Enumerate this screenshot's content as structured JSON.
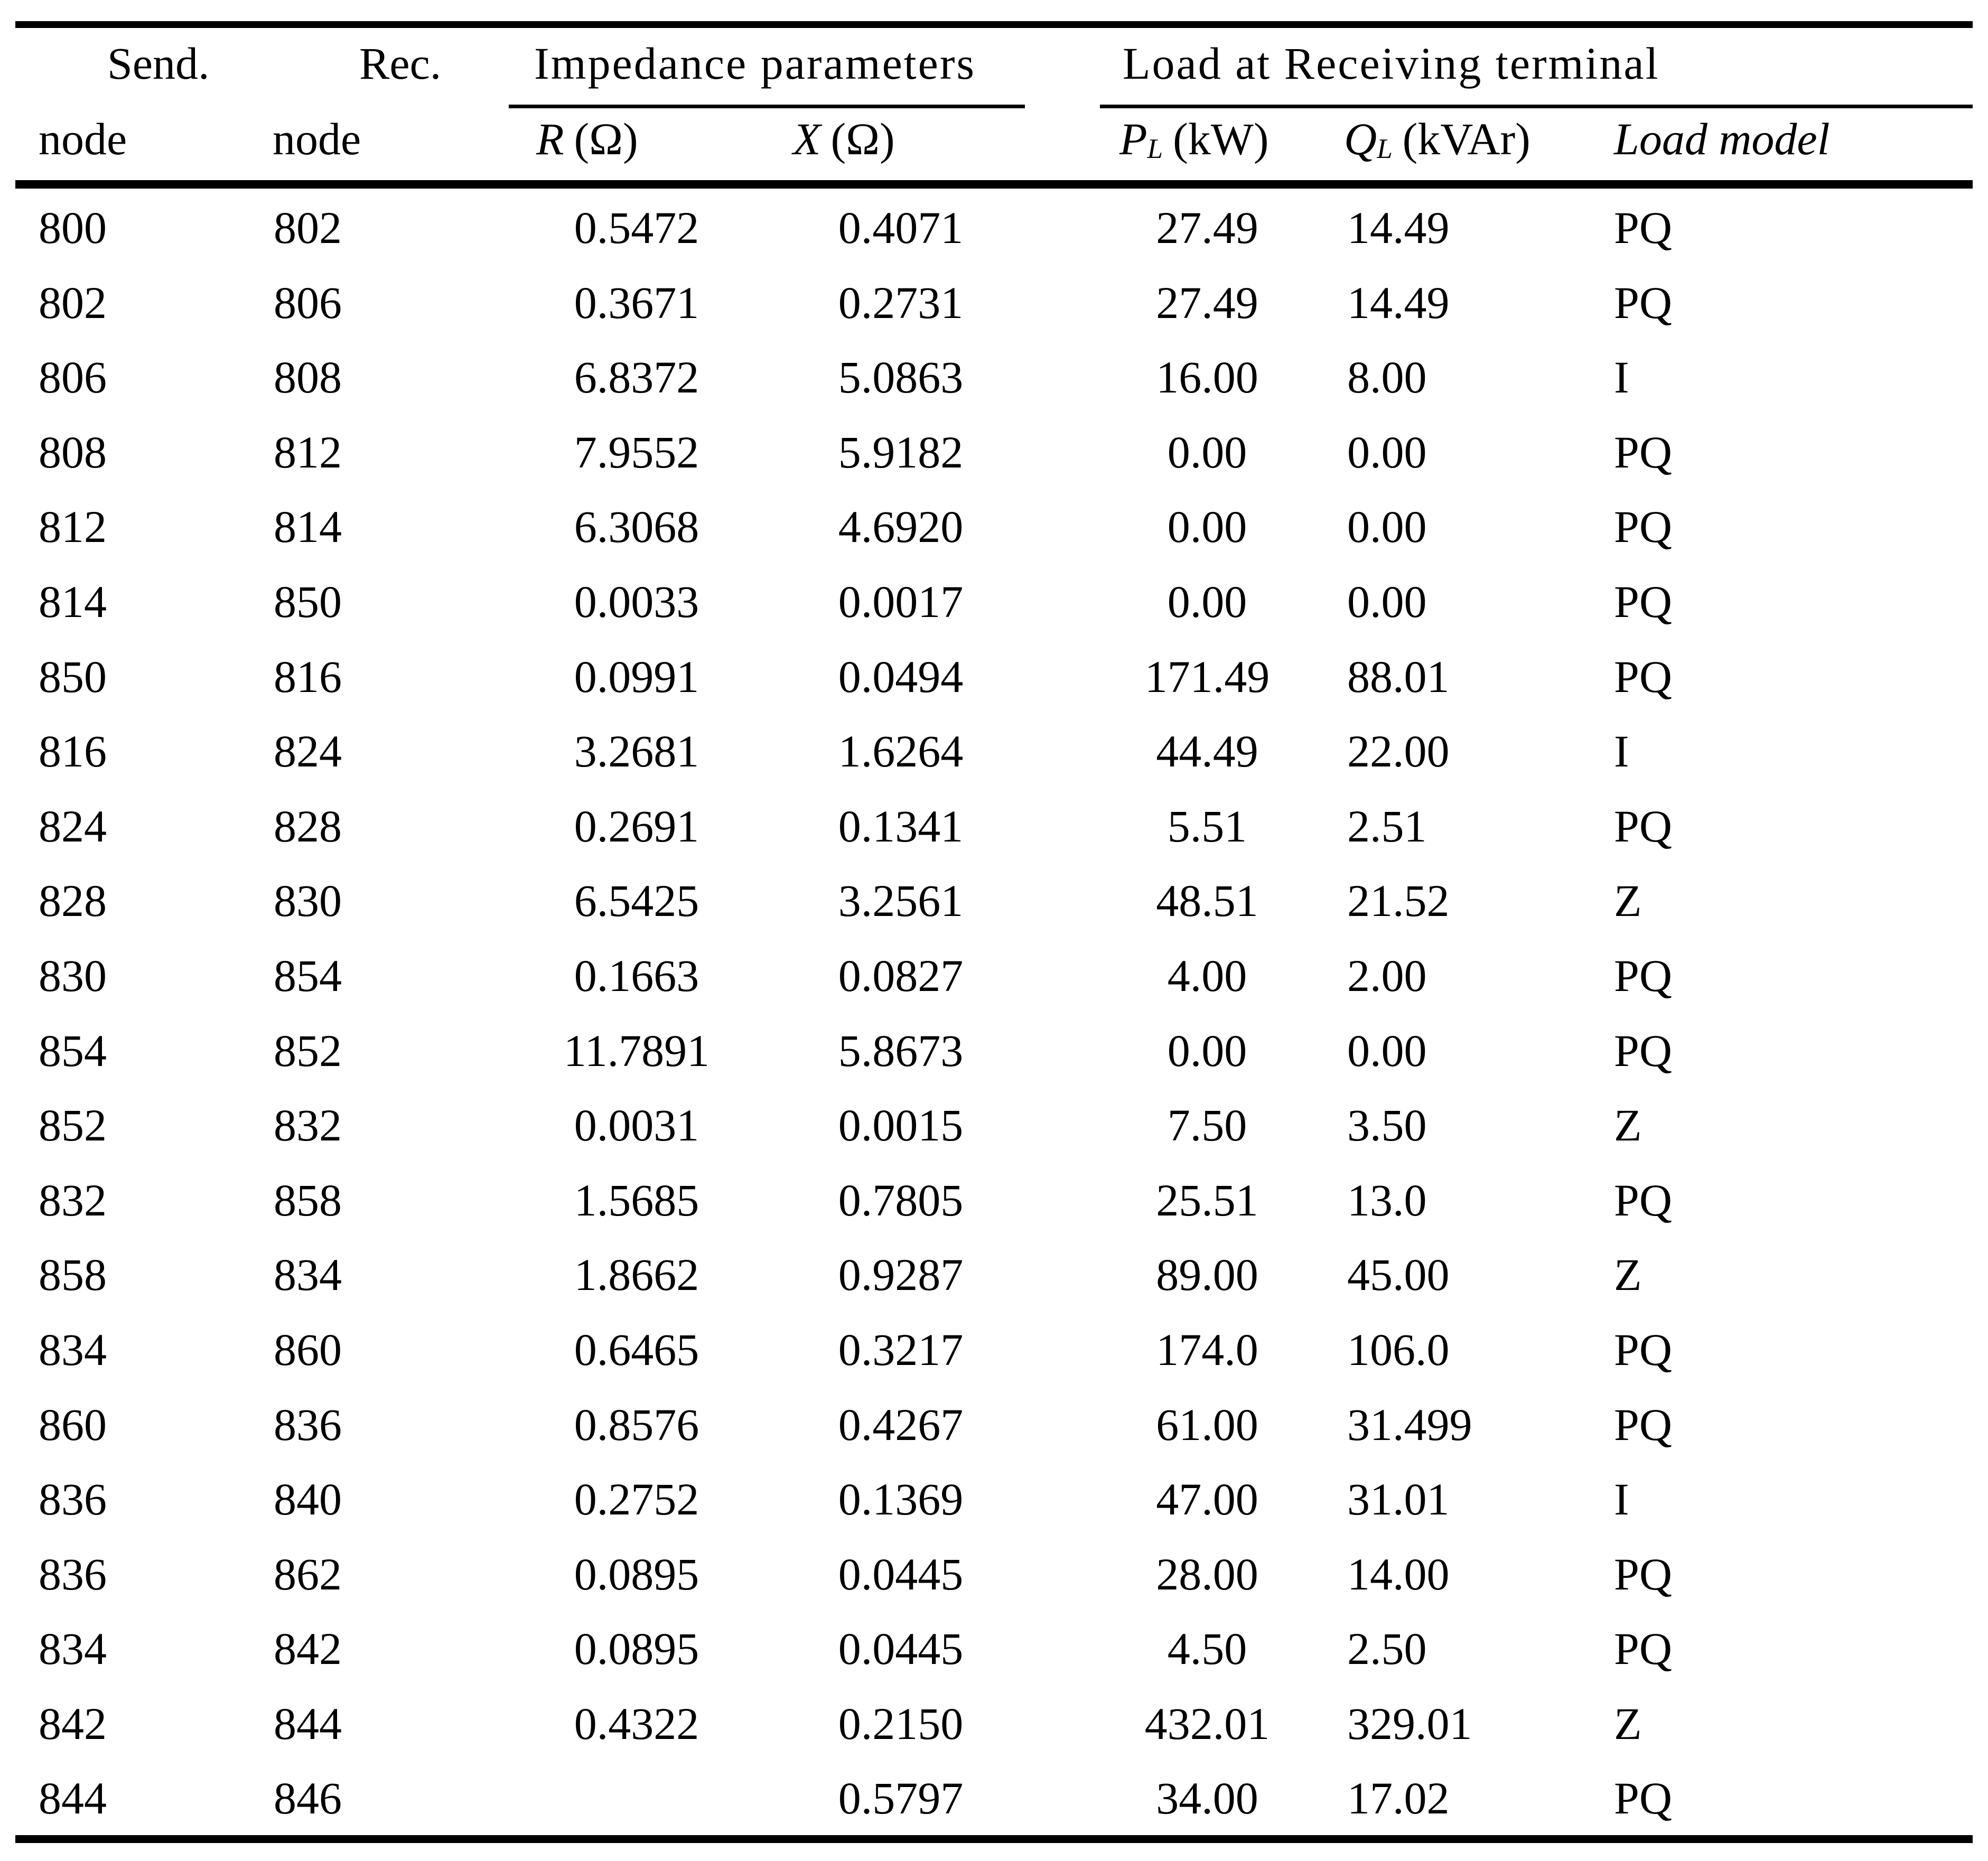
{
  "colors": {
    "background": "#ffffff",
    "text": "#000000",
    "rule": "#000000"
  },
  "header": {
    "send_top": "Send.",
    "rec_top": "Rec.",
    "impedance_group": "Impedance parameters",
    "load_group": "Load at Receiving terminal",
    "node_label_send": "node",
    "node_label_rec": "node",
    "r_symbol": "R",
    "r_unit": "(Ω)",
    "x_symbol": "X",
    "x_unit": "(Ω)",
    "p_symbol": "P",
    "p_sub": "L",
    "p_unit": "(kW)",
    "q_symbol": "Q",
    "q_sub": "L",
    "q_unit": "(kVAr)",
    "load_model": "Load model"
  },
  "rows": [
    {
      "send": "800",
      "rec": "802",
      "r": "0.5472",
      "x": "0.4071",
      "pl": "27.49",
      "ql": "14.49",
      "model": "PQ"
    },
    {
      "send": "802",
      "rec": "806",
      "r": "0.3671",
      "x": "0.2731",
      "pl": "27.49",
      "ql": "14.49",
      "model": "PQ"
    },
    {
      "send": "806",
      "rec": "808",
      "r": "6.8372",
      "x": "5.0863",
      "pl": "16.00",
      "ql": "8.00",
      "model": "I"
    },
    {
      "send": "808",
      "rec": "812",
      "r": "7.9552",
      "x": "5.9182",
      "pl": "0.00",
      "ql": "0.00",
      "model": "PQ"
    },
    {
      "send": "812",
      "rec": "814",
      "r": "6.3068",
      "x": "4.6920",
      "pl": "0.00",
      "ql": "0.00",
      "model": "PQ"
    },
    {
      "send": "814",
      "rec": "850",
      "r": "0.0033",
      "x": "0.0017",
      "pl": "0.00",
      "ql": "0.00",
      "model": "PQ"
    },
    {
      "send": "850",
      "rec": "816",
      "r": "0.0991",
      "x": "0.0494",
      "pl": "171.49",
      "ql": "88.01",
      "model": "PQ"
    },
    {
      "send": "816",
      "rec": "824",
      "r": "3.2681",
      "x": "1.6264",
      "pl": "44.49",
      "ql": "22.00",
      "model": "I"
    },
    {
      "send": "824",
      "rec": "828",
      "r": "0.2691",
      "x": "0.1341",
      "pl": "5.51",
      "ql": "2.51",
      "model": "PQ"
    },
    {
      "send": "828",
      "rec": "830",
      "r": "6.5425",
      "x": "3.2561",
      "pl": "48.51",
      "ql": "21.52",
      "model": "Z"
    },
    {
      "send": "830",
      "rec": "854",
      "r": "0.1663",
      "x": "0.0827",
      "pl": "4.00",
      "ql": "2.00",
      "model": "PQ"
    },
    {
      "send": "854",
      "rec": "852",
      "r": "11.7891",
      "x": "5.8673",
      "pl": "0.00",
      "ql": "0.00",
      "model": "PQ"
    },
    {
      "send": "852",
      "rec": "832",
      "r": "0.0031",
      "x": "0.0015",
      "pl": "7.50",
      "ql": "3.50",
      "model": "Z"
    },
    {
      "send": "832",
      "rec": "858",
      "r": "1.5685",
      "x": "0.7805",
      "pl": "25.51",
      "ql": "13.0",
      "model": "PQ"
    },
    {
      "send": "858",
      "rec": "834",
      "r": "1.8662",
      "x": "0.9287",
      "pl": "89.00",
      "ql": "45.00",
      "model": "Z"
    },
    {
      "send": "834",
      "rec": "860",
      "r": "0.6465",
      "x": "0.3217",
      "pl": "174.0",
      "ql": "106.0",
      "model": "PQ"
    },
    {
      "send": "860",
      "rec": "836",
      "r": "0.8576",
      "x": "0.4267",
      "pl": "61.00",
      "ql": "31.499",
      "model": "PQ"
    },
    {
      "send": "836",
      "rec": "840",
      "r": "0.2752",
      "x": "0.1369",
      "pl": "47.00",
      "ql": "31.01",
      "model": "I"
    },
    {
      "send": "836",
      "rec": "862",
      "r": "0.0895",
      "x": "0.0445",
      "pl": "28.00",
      "ql": "14.00",
      "model": "PQ"
    },
    {
      "send": "834",
      "rec": "842",
      "r": "0.0895",
      "x": "0.0445",
      "pl": "4.50",
      "ql": "2.50",
      "model": "PQ"
    },
    {
      "send": "842",
      "rec": "844",
      "r": "0.4322",
      "x": "0.2150",
      "pl": "432.01",
      "ql": "329.01",
      "model": "Z"
    },
    {
      "send": "844",
      "rec": "846",
      "r": "",
      "x": "0.5797",
      "pl": "34.00",
      "ql": "17.02",
      "model": "PQ"
    }
  ]
}
